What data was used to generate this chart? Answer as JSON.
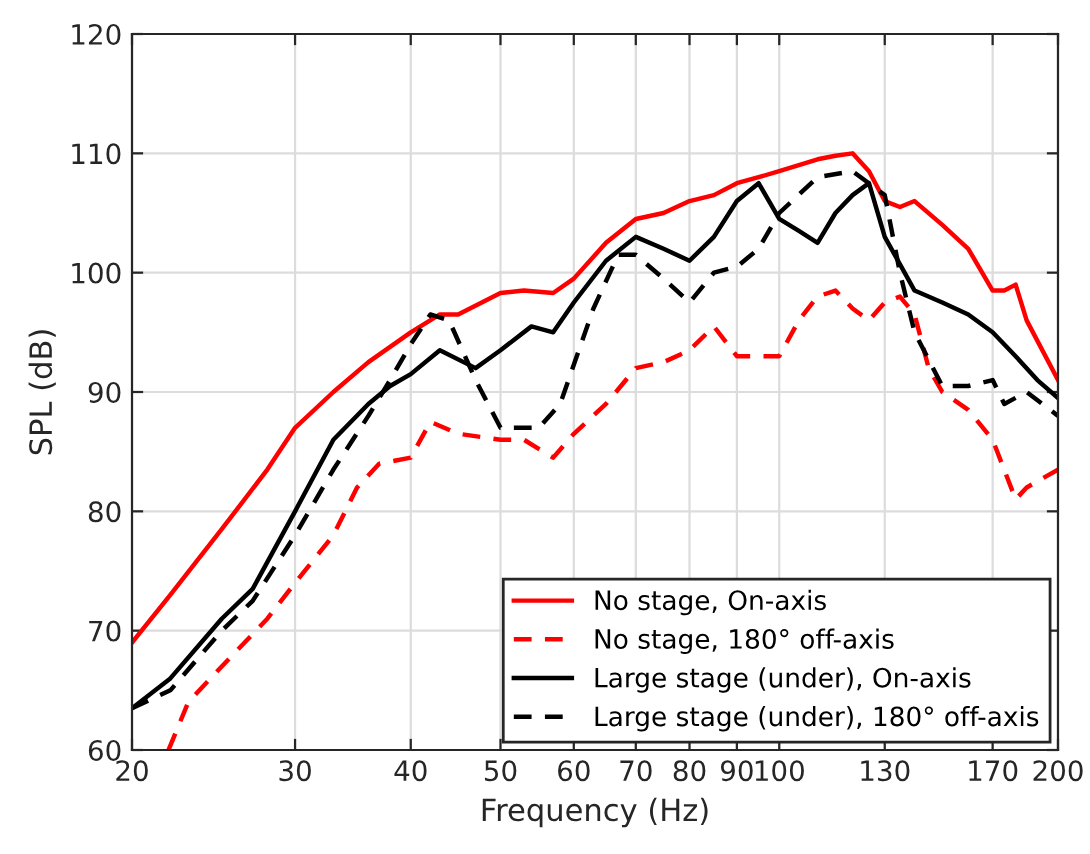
{
  "chart_data": {
    "type": "line",
    "xlabel": "Frequency (Hz)",
    "ylabel": "SPL (dB)",
    "log": "x",
    "xlim": [
      20,
      200
    ],
    "ylim": [
      60,
      120
    ],
    "xticks": [
      20,
      30,
      40,
      50,
      60,
      70,
      80,
      90,
      100,
      130,
      170,
      200
    ],
    "yticks": [
      60,
      70,
      80,
      90,
      100,
      110,
      120
    ],
    "grid": true,
    "legend": "bottom right",
    "series": [
      {
        "name": "No stage, On-axis",
        "color": "#ff0000",
        "line_style": "solid",
        "x": [
          20,
          22,
          25,
          28,
          30,
          33,
          36,
          40,
          43,
          45,
          50,
          53,
          57,
          60,
          65,
          70,
          75,
          80,
          85,
          90,
          95,
          100,
          110,
          115,
          120,
          125,
          130,
          135,
          140,
          150,
          160,
          170,
          175,
          180,
          185,
          200
        ],
        "values": [
          69,
          73,
          78.5,
          83.5,
          87,
          90,
          92.5,
          95,
          96.5,
          96.5,
          98.3,
          98.5,
          98.3,
          99.5,
          102.5,
          104.5,
          105,
          106,
          106.5,
          107.5,
          108,
          108.5,
          109.5,
          109.8,
          110,
          108.5,
          106,
          105.5,
          106,
          104,
          102,
          98.5,
          98.5,
          99,
          96,
          91
        ]
      },
      {
        "name": "No stage, 180° off-axis",
        "color": "#ff0000",
        "line_style": "dashed",
        "x": [
          21.9,
          23,
          25,
          28,
          30,
          33,
          35,
          37,
          40,
          42,
          45,
          50,
          53,
          57,
          60,
          65,
          70,
          75,
          80,
          85,
          90,
          95,
          100,
          105,
          110,
          115,
          120,
          125,
          130,
          135,
          140,
          145,
          150,
          160,
          170,
          180,
          185,
          200
        ],
        "values": [
          60,
          64,
          67,
          71,
          74,
          78,
          82,
          84,
          84.5,
          87.5,
          86.5,
          86,
          86,
          84.5,
          86.5,
          89,
          92,
          92.5,
          93.5,
          95.5,
          93,
          93,
          93,
          96,
          98,
          98.5,
          97,
          96,
          97.5,
          98,
          96.5,
          92,
          90,
          88.5,
          86,
          81,
          82,
          83.5
        ]
      },
      {
        "name": "Large stage (under), On-axis",
        "color": "#000000",
        "line_style": "solid",
        "x": [
          20,
          22,
          25,
          27,
          30,
          33,
          36,
          38,
          40,
          43,
          47,
          50,
          54,
          57,
          60,
          65,
          70,
          75,
          80,
          85,
          90,
          95,
          100,
          105,
          110,
          115,
          120,
          125,
          130,
          140,
          150,
          160,
          170,
          180,
          190,
          200
        ],
        "values": [
          63.5,
          66,
          71,
          73.5,
          80,
          86,
          89,
          90.5,
          91.5,
          93.5,
          92,
          93.5,
          95.5,
          95,
          97.5,
          101,
          103,
          102,
          101,
          103,
          106,
          107.5,
          104.5,
          103.5,
          102.5,
          105,
          106.5,
          107.5,
          103,
          98.5,
          97.5,
          96.5,
          95,
          93,
          91,
          89.5
        ]
      },
      {
        "name": "Large stage (under), 180° off-axis",
        "color": "#000000",
        "line_style": "dashed",
        "x": [
          20,
          22,
          25,
          27,
          30,
          33,
          36,
          38,
          40,
          42,
          44,
          47,
          50,
          55,
          58,
          63,
          67,
          70,
          75,
          80,
          85,
          90,
          95,
          100,
          110,
          120,
          130,
          135,
          140,
          150,
          160,
          170,
          175,
          185,
          200
        ],
        "values": [
          63.5,
          65,
          70,
          72.5,
          78,
          83.5,
          88,
          91,
          94,
          96.5,
          96,
          91,
          87,
          87,
          89,
          97,
          101.5,
          101.5,
          99.5,
          97.5,
          100,
          100.5,
          102,
          105,
          108,
          108.5,
          106.5,
          100,
          95,
          90.5,
          90.5,
          91,
          89,
          90,
          88
        ]
      }
    ]
  }
}
